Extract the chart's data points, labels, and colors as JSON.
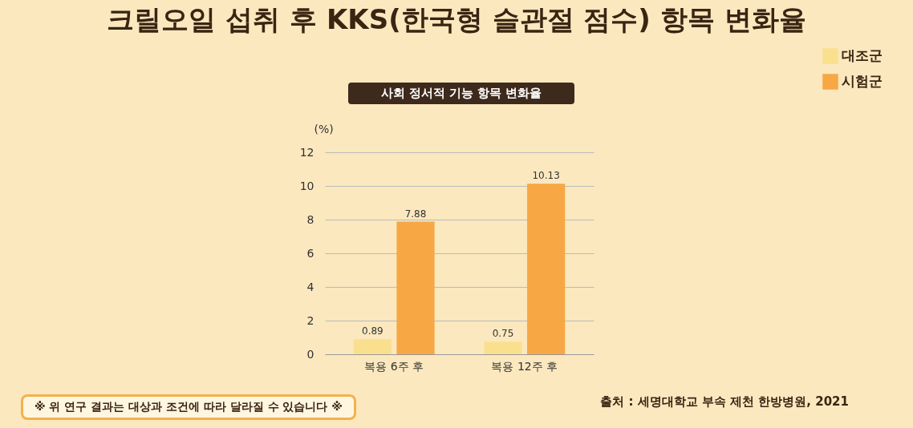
{
  "chart_data": {
    "type": "bar",
    "title": "크릴오일 섭취 후 KKS(한국형 슬관절 점수) 항목 변화율",
    "subtitle": "사회 정서적 기능 항목 변화율",
    "ylabel": "(%)",
    "categories": [
      "복용 6주 후",
      "복용 12주 후"
    ],
    "series": [
      {
        "name": "대조군",
        "color": "#fae08e",
        "values": [
          0.89,
          0.75
        ]
      },
      {
        "name": "시험군",
        "color": "#f7a743",
        "values": [
          7.88,
          10.13
        ]
      }
    ],
    "ylim": [
      0,
      12
    ],
    "yticks": [
      0,
      2,
      4,
      6,
      8,
      10,
      12
    ],
    "grid": "y",
    "legend": "top right",
    "data_labels": true,
    "annotations": [
      "※ 위 연구 결과는 대상과 조건에 따라 달라질 수 있습니다 ※",
      "출처 : 세명대학교 부속 제천 한방병원, 2021"
    ]
  }
}
